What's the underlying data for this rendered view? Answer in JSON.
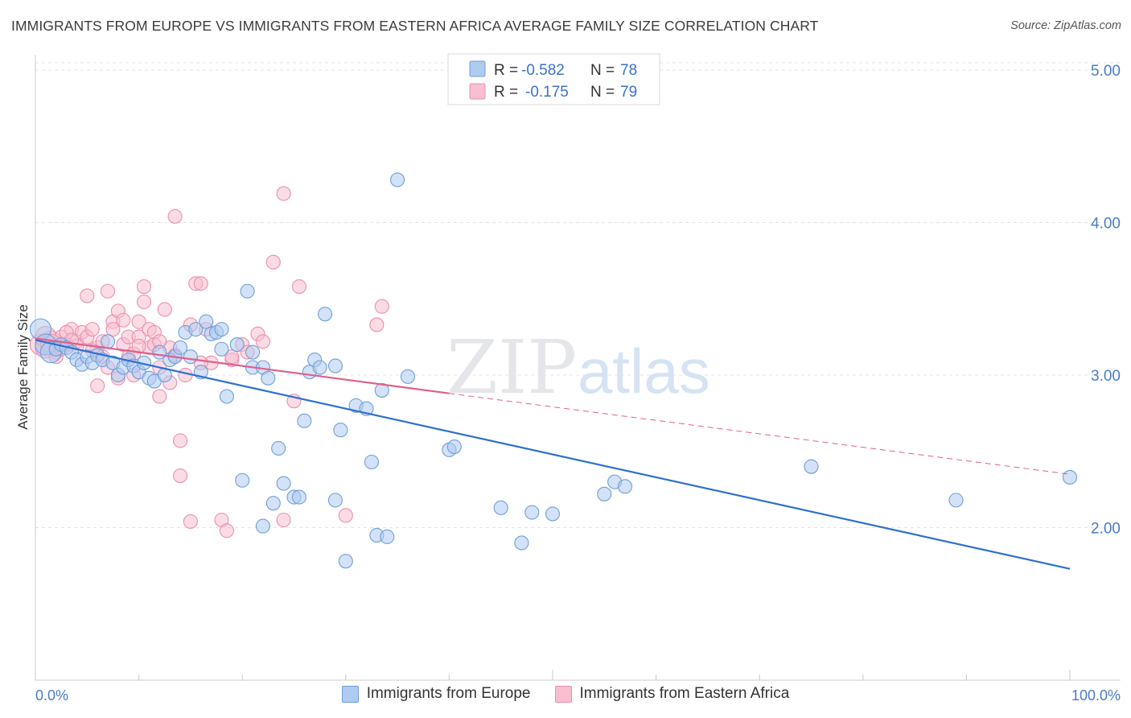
{
  "title": "IMMIGRANTS FROM EUROPE VS IMMIGRANTS FROM EASTERN AFRICA AVERAGE FAMILY SIZE CORRELATION CHART",
  "source": "Source: ZipAtlas.com",
  "watermark": {
    "zip": "ZIP",
    "atlas": "atlas"
  },
  "legend": {
    "r_label": "R =",
    "n_label": "N =",
    "rows": [
      {
        "r": "-0.582",
        "n": "78"
      },
      {
        "r": "-0.175",
        "n": "79"
      }
    ]
  },
  "colors": {
    "europe_fill": "#aecbf0",
    "europe_stroke": "#6f9fd9",
    "europe_line": "#2f6fce",
    "africa_fill": "#f8bfd0",
    "africa_stroke": "#ec8fad",
    "africa_line": "#e0608b"
  },
  "chart_data": {
    "type": "scatter",
    "ylabel": "Average Family Size",
    "xlim": [
      0,
      100
    ],
    "ylim": [
      1.0,
      5.1
    ],
    "y_ticks": [
      2.0,
      3.0,
      4.0,
      5.0
    ],
    "y_tick_labels": [
      "2.00",
      "3.00",
      "4.00",
      "5.00"
    ],
    "x_tick_labels": [
      "0.0%",
      "100.0%"
    ],
    "grid": true,
    "legend_position": "top-center",
    "series": [
      {
        "name": "Immigrants from Europe",
        "trend": {
          "x": [
            0,
            100
          ],
          "y": [
            3.23,
            1.73
          ],
          "dashed_after": null
        },
        "points": [
          [
            0.5,
            3.3
          ],
          [
            1,
            3.2
          ],
          [
            1.5,
            3.15
          ],
          [
            2,
            3.17
          ],
          [
            2.5,
            3.2
          ],
          [
            3,
            3.18
          ],
          [
            3.5,
            3.15
          ],
          [
            4,
            3.1
          ],
          [
            4.5,
            3.07
          ],
          [
            5,
            3.12
          ],
          [
            5.5,
            3.08
          ],
          [
            6,
            3.13
          ],
          [
            6.5,
            3.1
          ],
          [
            7,
            3.22
          ],
          [
            7.5,
            3.08
          ],
          [
            8,
            3.0
          ],
          [
            8.5,
            3.05
          ],
          [
            9,
            3.1
          ],
          [
            9.5,
            3.06
          ],
          [
            10,
            3.02
          ],
          [
            10.5,
            3.08
          ],
          [
            11,
            2.98
          ],
          [
            11.5,
            2.96
          ],
          [
            12,
            3.15
          ],
          [
            12.5,
            3.0
          ],
          [
            13,
            3.1
          ],
          [
            13.5,
            3.12
          ],
          [
            14,
            3.18
          ],
          [
            14.5,
            3.28
          ],
          [
            15,
            3.12
          ],
          [
            15.5,
            3.3
          ],
          [
            16,
            3.02
          ],
          [
            16.5,
            3.35
          ],
          [
            17,
            3.27
          ],
          [
            17.5,
            3.28
          ],
          [
            18,
            3.17
          ],
          [
            18,
            3.3
          ],
          [
            18.5,
            2.86
          ],
          [
            19.5,
            3.2
          ],
          [
            20,
            2.31
          ],
          [
            20.5,
            3.55
          ],
          [
            21,
            3.05
          ],
          [
            21,
            3.15
          ],
          [
            22,
            2.01
          ],
          [
            22,
            3.05
          ],
          [
            22.5,
            2.98
          ],
          [
            23,
            2.16
          ],
          [
            23.5,
            2.52
          ],
          [
            24,
            2.29
          ],
          [
            25,
            2.2
          ],
          [
            25.5,
            2.2
          ],
          [
            26,
            2.7
          ],
          [
            26.5,
            3.02
          ],
          [
            27,
            3.1
          ],
          [
            27.5,
            3.05
          ],
          [
            28,
            3.4
          ],
          [
            29,
            3.06
          ],
          [
            29,
            2.18
          ],
          [
            29.5,
            2.64
          ],
          [
            30,
            1.78
          ],
          [
            31,
            2.8
          ],
          [
            32,
            2.78
          ],
          [
            32.5,
            2.43
          ],
          [
            33,
            1.95
          ],
          [
            33.5,
            2.9
          ],
          [
            34,
            1.94
          ],
          [
            35,
            4.28
          ],
          [
            36,
            2.99
          ],
          [
            40,
            2.51
          ],
          [
            40.5,
            2.53
          ],
          [
            45,
            2.13
          ],
          [
            47,
            1.9
          ],
          [
            48,
            2.1
          ],
          [
            50,
            2.09
          ],
          [
            55,
            2.22
          ],
          [
            56,
            2.3
          ],
          [
            57,
            2.27
          ],
          [
            75,
            2.4
          ],
          [
            89,
            2.18
          ],
          [
            100,
            2.33
          ]
        ]
      },
      {
        "name": "Immigrants from Eastern Africa",
        "trend": {
          "x": [
            0,
            40,
            100
          ],
          "y": [
            3.24,
            2.88,
            2.35
          ],
          "dashed_after": 40
        },
        "points": [
          [
            0.5,
            3.2
          ],
          [
            1,
            3.18
          ],
          [
            1.5,
            3.22
          ],
          [
            2,
            3.15
          ],
          [
            2.5,
            3.25
          ],
          [
            3,
            3.2
          ],
          [
            3.5,
            3.3
          ],
          [
            4,
            3.22
          ],
          [
            4.5,
            3.28
          ],
          [
            5,
            3.25
          ],
          [
            5,
            3.52
          ],
          [
            5.5,
            3.3
          ],
          [
            6,
            3.18
          ],
          [
            6,
            2.93
          ],
          [
            6.5,
            3.22
          ],
          [
            7,
            3.55
          ],
          [
            7.5,
            3.35
          ],
          [
            7.5,
            3.3
          ],
          [
            8,
            3.42
          ],
          [
            8,
            2.98
          ],
          [
            8.5,
            3.2
          ],
          [
            9,
            3.12
          ],
          [
            9,
            3.25
          ],
          [
            9.5,
            3.0
          ],
          [
            10,
            3.35
          ],
          [
            10,
            3.25
          ],
          [
            10.5,
            3.58
          ],
          [
            10.5,
            3.48
          ],
          [
            11,
            3.3
          ],
          [
            11,
            3.18
          ],
          [
            11.5,
            3.28
          ],
          [
            11.5,
            3.2
          ],
          [
            12,
            2.86
          ],
          [
            12,
            3.05
          ],
          [
            12.5,
            3.43
          ],
          [
            13,
            3.18
          ],
          [
            13,
            2.95
          ],
          [
            13.5,
            4.04
          ],
          [
            14,
            2.57
          ],
          [
            14,
            2.34
          ],
          [
            14.5,
            3.0
          ],
          [
            15,
            3.33
          ],
          [
            15,
            2.04
          ],
          [
            15.5,
            3.6
          ],
          [
            16,
            3.6
          ],
          [
            16.5,
            3.3
          ],
          [
            17,
            3.08
          ],
          [
            18,
            2.05
          ],
          [
            18.5,
            1.98
          ],
          [
            19,
            3.1
          ],
          [
            19,
            3.12
          ],
          [
            20,
            3.2
          ],
          [
            20.5,
            3.15
          ],
          [
            21.5,
            3.27
          ],
          [
            22,
            3.22
          ],
          [
            23,
            3.74
          ],
          [
            24,
            4.19
          ],
          [
            24,
            2.05
          ],
          [
            25,
            2.83
          ],
          [
            25.5,
            3.58
          ],
          [
            30,
            2.08
          ],
          [
            33,
            3.33
          ],
          [
            33.5,
            3.45
          ],
          [
            4,
            3.19
          ],
          [
            2,
            3.12
          ],
          [
            3,
            3.28
          ],
          [
            5.5,
            3.16
          ],
          [
            6.5,
            3.12
          ],
          [
            7,
            3.05
          ],
          [
            8.5,
            3.36
          ],
          [
            9.5,
            3.14
          ],
          [
            10,
            3.19
          ],
          [
            12,
            3.22
          ],
          [
            13.5,
            3.13
          ],
          [
            16,
            3.08
          ],
          [
            1,
            3.25
          ],
          [
            1.5,
            3.2
          ],
          [
            2.5,
            3.17
          ],
          [
            3.5,
            3.23
          ]
        ]
      }
    ]
  }
}
